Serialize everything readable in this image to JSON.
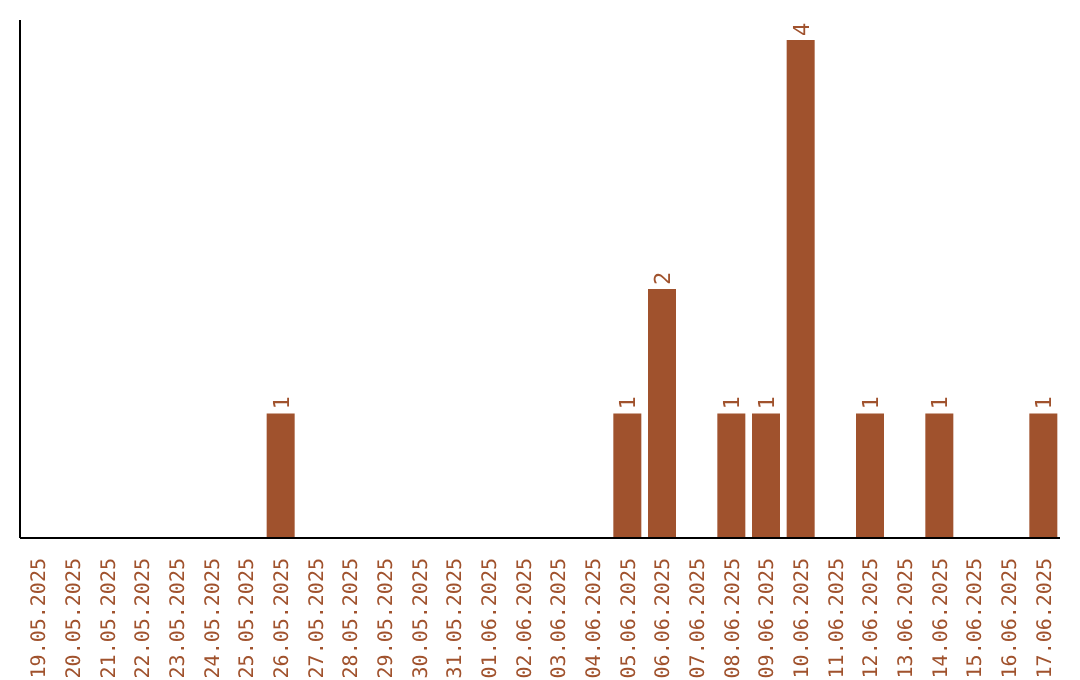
{
  "chart_data": {
    "type": "bar",
    "categories": [
      "19.05.2025",
      "20.05.2025",
      "21.05.2025",
      "22.05.2025",
      "23.05.2025",
      "24.05.2025",
      "25.05.2025",
      "26.05.2025",
      "27.05.2025",
      "28.05.2025",
      "29.05.2025",
      "30.05.2025",
      "31.05.2025",
      "01.06.2025",
      "02.06.2025",
      "03.06.2025",
      "04.06.2025",
      "05.06.2025",
      "06.06.2025",
      "07.06.2025",
      "08.06.2025",
      "09.06.2025",
      "10.06.2025",
      "11.06.2025",
      "12.06.2025",
      "13.06.2025",
      "14.06.2025",
      "15.06.2025",
      "16.06.2025",
      "17.06.2025"
    ],
    "values": [
      0,
      0,
      0,
      0,
      0,
      0,
      0,
      1,
      0,
      0,
      0,
      0,
      0,
      0,
      0,
      0,
      0,
      1,
      2,
      0,
      1,
      1,
      4,
      0,
      1,
      0,
      1,
      0,
      0,
      1
    ],
    "value_labels": [
      null,
      null,
      null,
      null,
      null,
      null,
      null,
      "1",
      null,
      null,
      null,
      null,
      null,
      null,
      null,
      null,
      null,
      "1",
      "2",
      null,
      "1",
      "1",
      "4",
      null,
      "1",
      null,
      "1",
      null,
      null,
      "1"
    ],
    "color": "#a0522d",
    "tick_labels": "x",
    "grid": false,
    "legend": false
  }
}
